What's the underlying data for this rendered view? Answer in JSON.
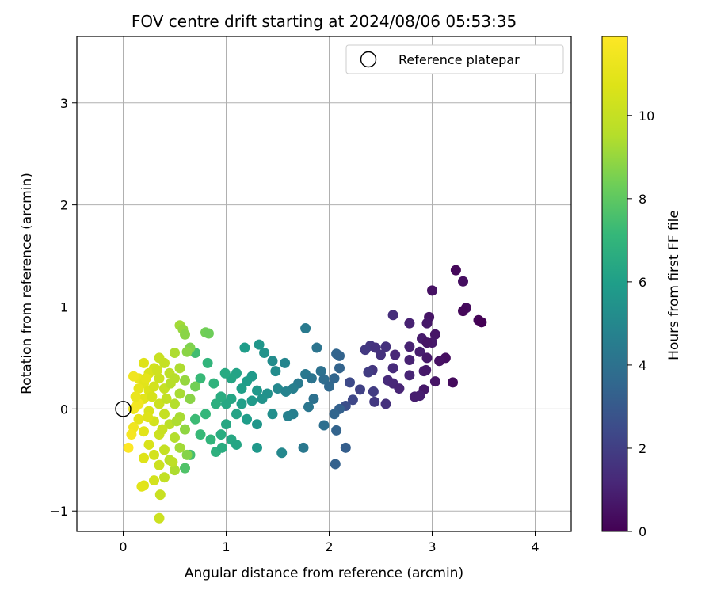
{
  "chart_data": {
    "type": "scatter",
    "title": "FOV centre drift starting at 2024/08/06 05:53:35",
    "xlabel": "Angular distance from reference (arcmin)",
    "ylabel": "Rotation from reference (arcmin)",
    "xlim": [
      -0.45,
      4.35
    ],
    "ylim": [
      -1.2,
      3.65
    ],
    "x_ticks": [
      0,
      1,
      2,
      3,
      4
    ],
    "y_ticks": [
      -1,
      0,
      1,
      2,
      3
    ],
    "grid": true,
    "legend": {
      "position": "top-right",
      "entries": [
        {
          "label": "Reference platepar",
          "marker": "hollow-circle"
        }
      ]
    },
    "reference_point": {
      "x": 0,
      "y": 0,
      "label": "Reference platepar"
    },
    "colorbar": {
      "label": "Hours from first FF file",
      "colormap": "viridis",
      "range": [
        0,
        11.9
      ],
      "ticks": [
        0,
        2,
        4,
        6,
        8,
        10
      ]
    },
    "points_sample_note": "",
    "series": [
      {
        "points": [
          [
            3.23,
            1.36,
            0.2
          ],
          [
            3.3,
            1.25,
            0.4
          ],
          [
            3.0,
            1.16,
            0.5
          ],
          [
            3.33,
            0.99,
            0.3
          ],
          [
            3.3,
            0.96,
            0.2
          ],
          [
            3.45,
            0.87,
            0.1
          ],
          [
            3.48,
            0.85,
            0.0
          ],
          [
            2.97,
            0.9,
            0.6
          ],
          [
            2.95,
            0.84,
            0.7
          ],
          [
            2.78,
            0.84,
            1.0
          ],
          [
            2.62,
            0.92,
            1.4
          ],
          [
            3.03,
            0.73,
            0.6
          ],
          [
            2.9,
            0.69,
            0.8
          ],
          [
            3.0,
            0.65,
            0.7
          ],
          [
            2.95,
            0.65,
            0.6
          ],
          [
            2.78,
            0.61,
            1.0
          ],
          [
            2.55,
            0.61,
            1.5
          ],
          [
            2.4,
            0.62,
            1.7
          ],
          [
            2.35,
            0.58,
            1.8
          ],
          [
            2.45,
            0.6,
            1.6
          ],
          [
            2.88,
            0.56,
            0.9
          ],
          [
            2.64,
            0.53,
            1.2
          ],
          [
            2.5,
            0.53,
            1.5
          ],
          [
            3.13,
            0.5,
            0.4
          ],
          [
            3.07,
            0.47,
            0.5
          ],
          [
            2.78,
            0.48,
            1.0
          ],
          [
            2.95,
            0.5,
            0.7
          ],
          [
            2.62,
            0.4,
            1.3
          ],
          [
            2.92,
            0.37,
            0.8
          ],
          [
            2.94,
            0.38,
            0.7
          ],
          [
            2.78,
            0.33,
            1.1
          ],
          [
            2.42,
            0.38,
            1.7
          ],
          [
            2.38,
            0.36,
            1.9
          ],
          [
            2.57,
            0.28,
            1.3
          ],
          [
            2.62,
            0.25,
            1.2
          ],
          [
            3.03,
            0.27,
            0.6
          ],
          [
            3.2,
            0.26,
            0.3
          ],
          [
            2.92,
            0.19,
            0.7
          ],
          [
            2.68,
            0.2,
            1.1
          ],
          [
            2.83,
            0.12,
            0.9
          ],
          [
            2.88,
            0.13,
            0.9
          ],
          [
            2.55,
            0.05,
            1.5
          ],
          [
            2.44,
            0.07,
            1.8
          ],
          [
            2.3,
            0.19,
            2.1
          ],
          [
            2.43,
            0.17,
            1.9
          ],
          [
            2.2,
            0.26,
            2.4
          ],
          [
            2.23,
            0.09,
            2.3
          ],
          [
            2.16,
            0.03,
            2.6
          ],
          [
            1.77,
            0.79,
            4.4
          ],
          [
            1.88,
            0.6,
            4.1
          ],
          [
            2.07,
            0.54,
            3.5
          ],
          [
            2.1,
            0.52,
            3.4
          ],
          [
            1.92,
            0.37,
            4.0
          ],
          [
            2.1,
            0.4,
            3.4
          ],
          [
            1.77,
            0.34,
            4.3
          ],
          [
            1.83,
            0.3,
            4.1
          ],
          [
            2.05,
            0.3,
            3.5
          ],
          [
            1.95,
            0.29,
            3.8
          ],
          [
            2.0,
            0.22,
            3.6
          ],
          [
            1.7,
            0.25,
            4.4
          ],
          [
            1.65,
            0.2,
            4.6
          ],
          [
            1.5,
            0.2,
            5.0
          ],
          [
            1.58,
            0.17,
            4.8
          ],
          [
            1.85,
            0.1,
            4.0
          ],
          [
            1.8,
            0.02,
            4.2
          ],
          [
            2.1,
            0.0,
            3.3
          ],
          [
            2.05,
            -0.05,
            3.5
          ],
          [
            1.95,
            -0.16,
            3.9
          ],
          [
            2.07,
            -0.21,
            3.4
          ],
          [
            2.06,
            -0.54,
            3.3
          ],
          [
            2.16,
            -0.38,
            3.2
          ],
          [
            1.75,
            -0.38,
            4.3
          ],
          [
            1.65,
            -0.05,
            4.6
          ],
          [
            1.6,
            -0.07,
            4.7
          ],
          [
            1.32,
            0.63,
            5.6
          ],
          [
            1.37,
            0.55,
            5.5
          ],
          [
            1.45,
            0.47,
            5.2
          ],
          [
            1.57,
            0.45,
            4.9
          ],
          [
            1.48,
            0.37,
            5.2
          ],
          [
            1.25,
            0.32,
            5.8
          ],
          [
            1.2,
            0.27,
            5.9
          ],
          [
            1.1,
            0.35,
            6.2
          ],
          [
            1.05,
            0.3,
            6.3
          ],
          [
            1.15,
            0.2,
            6.0
          ],
          [
            1.3,
            0.18,
            5.7
          ],
          [
            1.4,
            0.15,
            5.4
          ],
          [
            1.35,
            0.1,
            5.5
          ],
          [
            1.25,
            0.08,
            5.8
          ],
          [
            1.15,
            0.05,
            6.0
          ],
          [
            1.05,
            0.1,
            6.3
          ],
          [
            1.0,
            0.05,
            6.4
          ],
          [
            0.95,
            0.12,
            6.6
          ],
          [
            0.9,
            0.05,
            6.7
          ],
          [
            1.1,
            -0.05,
            6.2
          ],
          [
            1.2,
            -0.1,
            5.9
          ],
          [
            1.3,
            -0.15,
            5.6
          ],
          [
            1.45,
            -0.05,
            5.3
          ],
          [
            1.0,
            -0.15,
            6.4
          ],
          [
            0.95,
            -0.25,
            6.6
          ],
          [
            1.05,
            -0.3,
            6.4
          ],
          [
            1.1,
            -0.35,
            6.3
          ],
          [
            1.3,
            -0.38,
            5.7
          ],
          [
            1.54,
            -0.43,
            5.0
          ],
          [
            0.9,
            -0.42,
            6.8
          ],
          [
            0.96,
            -0.38,
            6.6
          ],
          [
            0.7,
            -0.1,
            7.3
          ],
          [
            0.8,
            -0.05,
            7.1
          ],
          [
            0.75,
            -0.25,
            7.2
          ],
          [
            0.85,
            -0.3,
            7.0
          ],
          [
            0.6,
            -0.58,
            7.7
          ],
          [
            0.65,
            -0.45,
            7.5
          ],
          [
            0.75,
            0.3,
            7.2
          ],
          [
            0.82,
            0.45,
            7.0
          ],
          [
            0.88,
            0.25,
            6.9
          ],
          [
            0.99,
            0.35,
            6.5
          ],
          [
            1.18,
            0.6,
            5.9
          ],
          [
            0.7,
            0.55,
            7.4
          ],
          [
            0.55,
            0.82,
            9.2
          ],
          [
            0.58,
            0.78,
            9.0
          ],
          [
            0.8,
            0.75,
            8.4
          ],
          [
            0.83,
            0.74,
            8.3
          ],
          [
            0.6,
            0.73,
            8.8
          ],
          [
            0.65,
            0.6,
            8.6
          ],
          [
            0.62,
            0.56,
            8.8
          ],
          [
            0.5,
            0.55,
            9.4
          ],
          [
            0.35,
            0.5,
            10.1
          ],
          [
            0.2,
            0.45,
            10.8
          ],
          [
            0.3,
            0.4,
            10.4
          ],
          [
            0.4,
            0.45,
            10.0
          ],
          [
            0.45,
            0.35,
            9.8
          ],
          [
            0.55,
            0.4,
            9.4
          ],
          [
            0.25,
            0.35,
            10.6
          ],
          [
            0.15,
            0.3,
            11.2
          ],
          [
            0.1,
            0.32,
            11.4
          ],
          [
            0.2,
            0.25,
            10.9
          ],
          [
            0.35,
            0.3,
            10.2
          ],
          [
            0.5,
            0.3,
            9.6
          ],
          [
            0.6,
            0.28,
            9.0
          ],
          [
            0.7,
            0.22,
            8.4
          ],
          [
            0.15,
            0.2,
            11.1
          ],
          [
            0.25,
            0.18,
            10.7
          ],
          [
            0.4,
            0.2,
            10.0
          ],
          [
            0.55,
            0.15,
            9.3
          ],
          [
            0.65,
            0.1,
            8.8
          ],
          [
            0.2,
            0.1,
            10.9
          ],
          [
            0.35,
            0.05,
            10.2
          ],
          [
            0.5,
            0.05,
            9.5
          ],
          [
            0.1,
            0.0,
            11.3
          ],
          [
            0.12,
            0.02,
            11.6
          ],
          [
            0.25,
            -0.02,
            10.6
          ],
          [
            0.4,
            -0.05,
            10.0
          ],
          [
            0.55,
            -0.08,
            9.3
          ],
          [
            0.15,
            -0.1,
            11.0
          ],
          [
            0.3,
            -0.12,
            10.4
          ],
          [
            0.45,
            -0.15,
            9.7
          ],
          [
            0.6,
            -0.2,
            8.9
          ],
          [
            0.1,
            -0.18,
            11.4
          ],
          [
            0.2,
            -0.22,
            10.9
          ],
          [
            0.35,
            -0.25,
            10.2
          ],
          [
            0.5,
            -0.28,
            9.5
          ],
          [
            0.08,
            -0.25,
            11.6
          ],
          [
            0.25,
            -0.35,
            10.6
          ],
          [
            0.4,
            -0.4,
            10.0
          ],
          [
            0.55,
            -0.38,
            9.2
          ],
          [
            0.05,
            -0.38,
            11.9
          ],
          [
            0.3,
            -0.45,
            10.4
          ],
          [
            0.45,
            -0.5,
            9.7
          ],
          [
            0.2,
            -0.48,
            10.8
          ],
          [
            0.35,
            -0.55,
            10.2
          ],
          [
            0.5,
            -0.6,
            9.4
          ],
          [
            0.4,
            -0.67,
            9.9
          ],
          [
            0.3,
            -0.7,
            10.4
          ],
          [
            0.2,
            -0.75,
            10.8
          ],
          [
            0.18,
            -0.76,
            10.9
          ],
          [
            0.36,
            -0.84,
            10.1
          ],
          [
            0.35,
            -1.07,
            10.2
          ],
          [
            0.48,
            -0.52,
            9.8
          ],
          [
            0.62,
            -0.45,
            8.7
          ],
          [
            0.15,
            0.05,
            11.5
          ],
          [
            0.28,
            0.12,
            10.5
          ],
          [
            0.42,
            0.1,
            9.9
          ],
          [
            0.3,
            0.22,
            10.4
          ],
          [
            0.46,
            0.25,
            9.6
          ],
          [
            0.33,
            0.38,
            10.3
          ],
          [
            0.22,
            0.3,
            11.0
          ],
          [
            0.12,
            0.12,
            11.2
          ],
          [
            0.38,
            -0.2,
            10.1
          ],
          [
            0.52,
            -0.12,
            9.4
          ],
          [
            0.24,
            -0.08,
            10.8
          ]
        ]
      }
    ]
  }
}
